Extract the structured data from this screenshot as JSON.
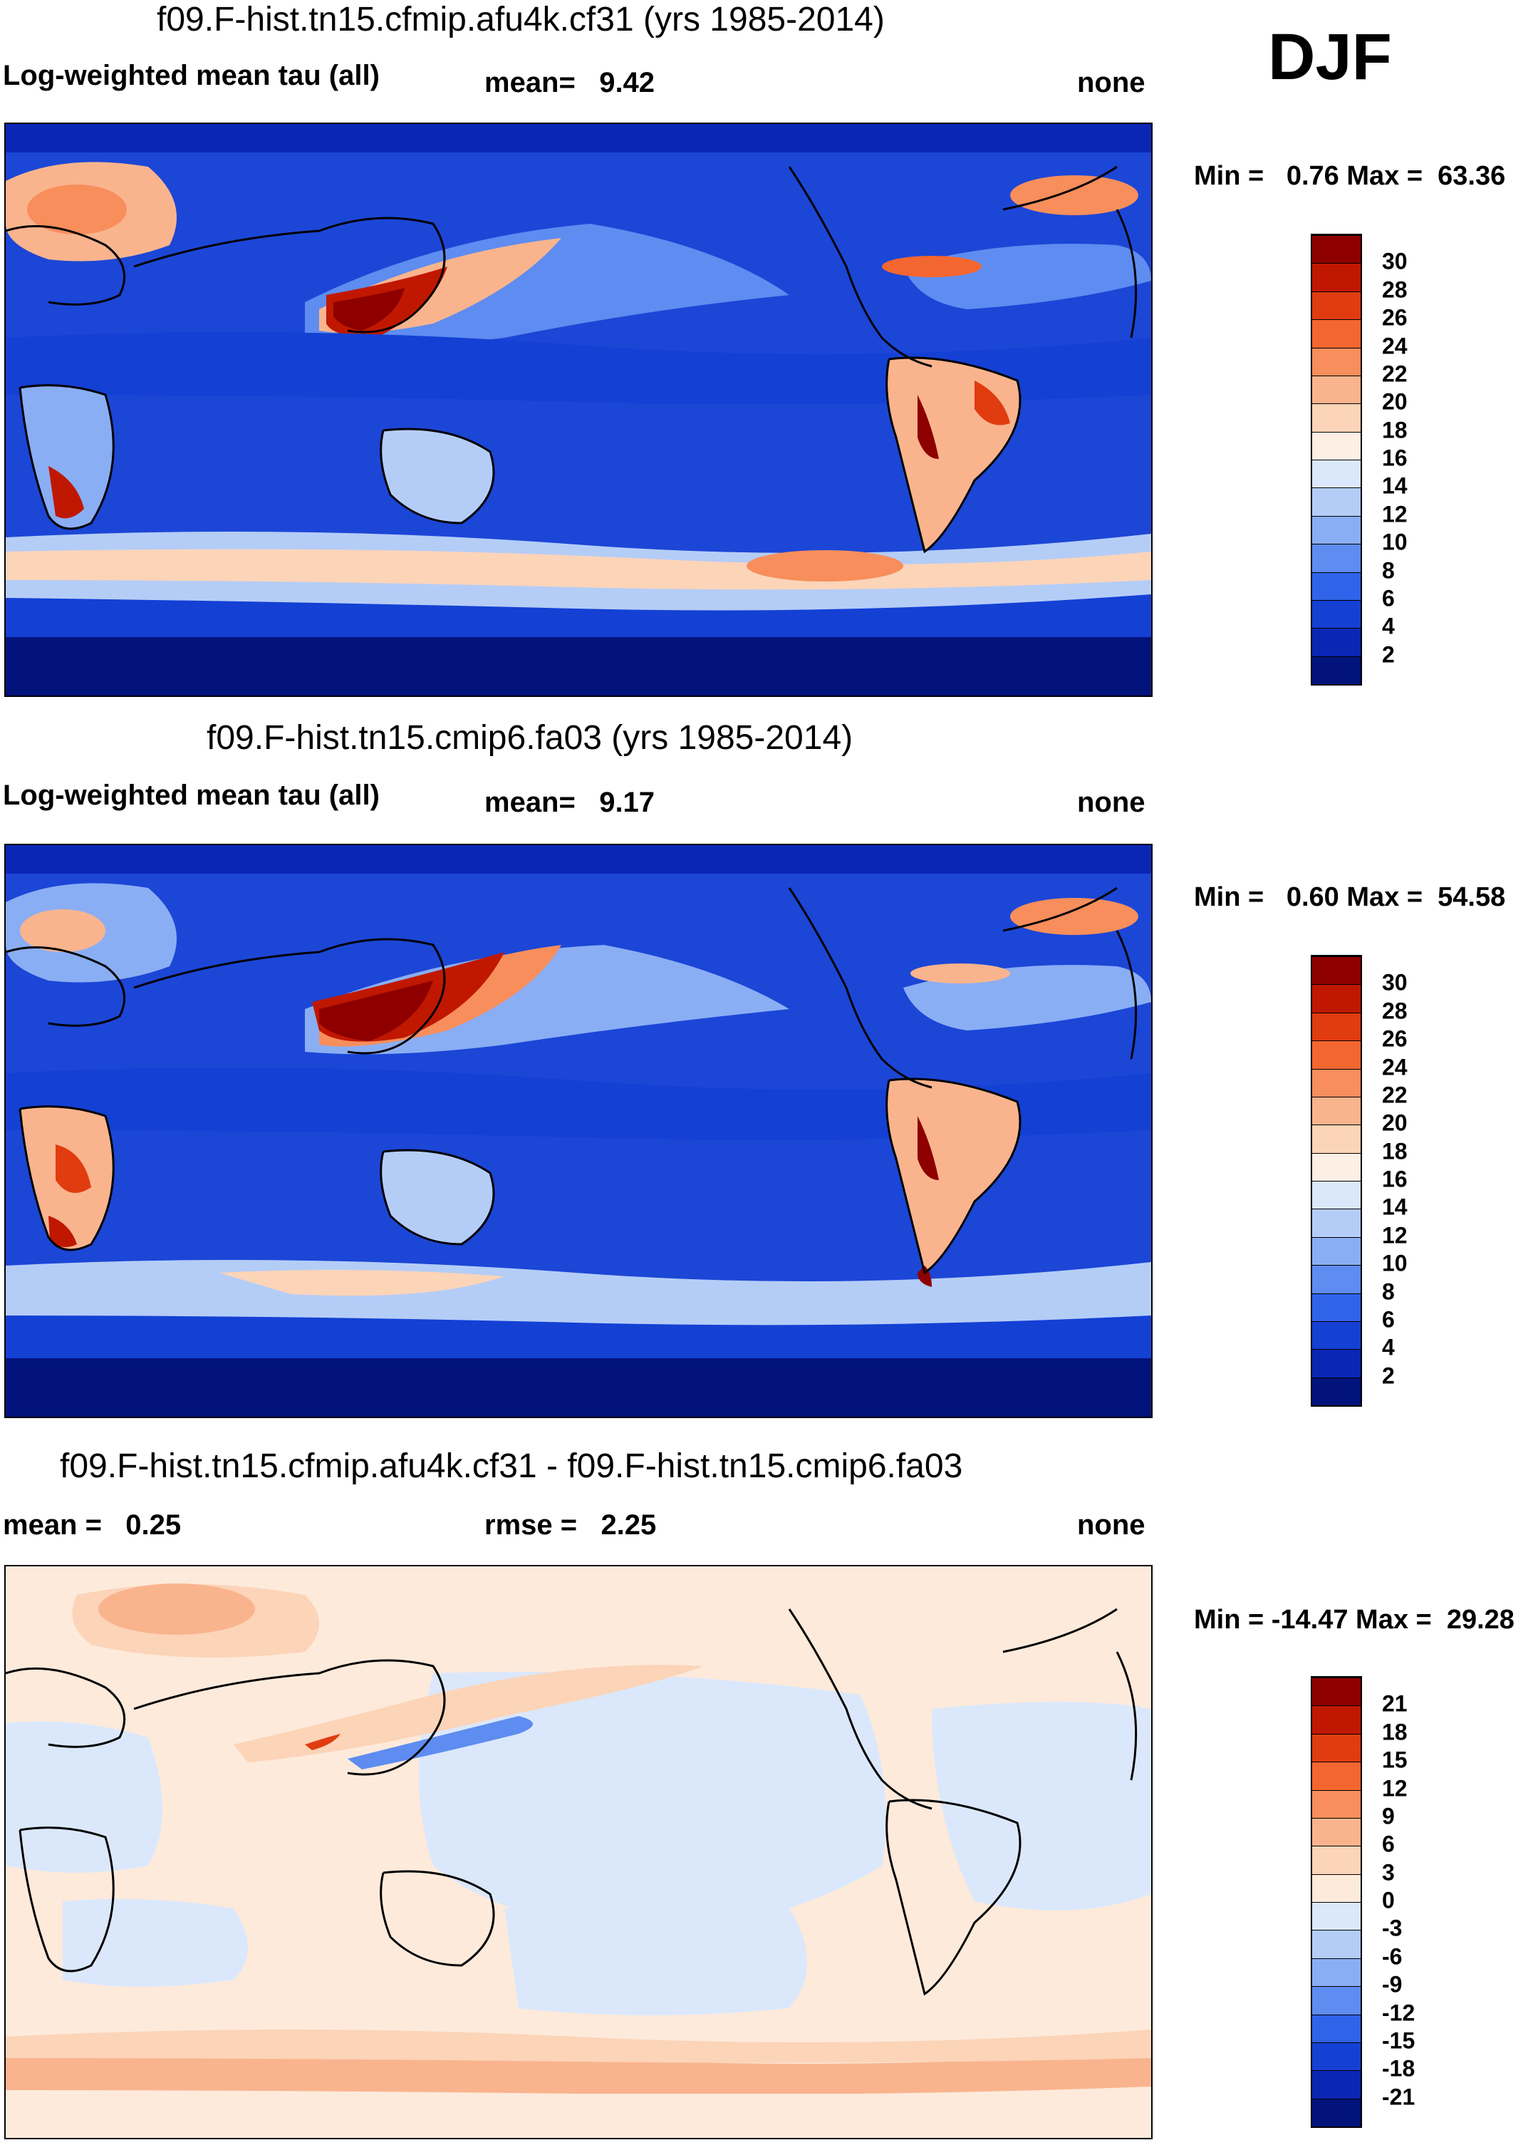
{
  "season": "DJF",
  "panels": [
    {
      "title": "f09.F-hist.tn15.cfmip.afu4k.cf31 (yrs 1985-2014)",
      "left_label": "Log-weighted mean tau (all)",
      "center_label": "mean=   9.42",
      "right_label": "none",
      "minmax": "Min =   0.76 Max =  63.36",
      "colorbar": {
        "labels": [
          "30",
          "28",
          "26",
          "24",
          "22",
          "20",
          "18",
          "16",
          "14",
          "12",
          "10",
          "8",
          "6",
          "4",
          "2"
        ],
        "colors": [
          "#8e0000",
          "#c01800",
          "#e03c10",
          "#f46630",
          "#f78e5c",
          "#f9b48e",
          "#fcd4b8",
          "#fdefe3",
          "#dbe8fb",
          "#b4cdf7",
          "#8aaef4",
          "#5e8cf0",
          "#2f63ea",
          "#1440d4",
          "#0a26b4",
          "#02137c"
        ]
      }
    },
    {
      "title": "f09.F-hist.tn15.cmip6.fa03 (yrs 1985-2014)",
      "left_label": "Log-weighted mean tau (all)",
      "center_label": "mean=   9.17",
      "right_label": "none",
      "minmax": "Min =   0.60 Max =  54.58",
      "colorbar": {
        "labels": [
          "30",
          "28",
          "26",
          "24",
          "22",
          "20",
          "18",
          "16",
          "14",
          "12",
          "10",
          "8",
          "6",
          "4",
          "2"
        ],
        "colors": [
          "#8e0000",
          "#c01800",
          "#e03c10",
          "#f46630",
          "#f78e5c",
          "#f9b48e",
          "#fcd4b8",
          "#fdefe3",
          "#dbe8fb",
          "#b4cdf7",
          "#8aaef4",
          "#5e8cf0",
          "#2f63ea",
          "#1440d4",
          "#0a26b4",
          "#02137c"
        ]
      }
    },
    {
      "title": "f09.F-hist.tn15.cfmip.afu4k.cf31 - f09.F-hist.tn15.cmip6.fa03",
      "left_label": "mean =   0.25",
      "center_label": "rmse =   2.25",
      "right_label": "none",
      "minmax": "Min = -14.47 Max =  29.28",
      "colorbar": {
        "labels": [
          "21",
          "18",
          "15",
          "12",
          "9",
          "6",
          "3",
          "0",
          "-3",
          "-6",
          "-9",
          "-12",
          "-15",
          "-18",
          "-21"
        ],
        "colors": [
          "#8e0000",
          "#c01800",
          "#e03c10",
          "#f46630",
          "#f78e5c",
          "#f9b48e",
          "#fcd4b8",
          "#fdeadb",
          "#dbe8fb",
          "#b4cdf7",
          "#8aaef4",
          "#5e8cf0",
          "#2f63ea",
          "#1440d4",
          "#0a26b4",
          "#02137c"
        ]
      }
    }
  ]
}
